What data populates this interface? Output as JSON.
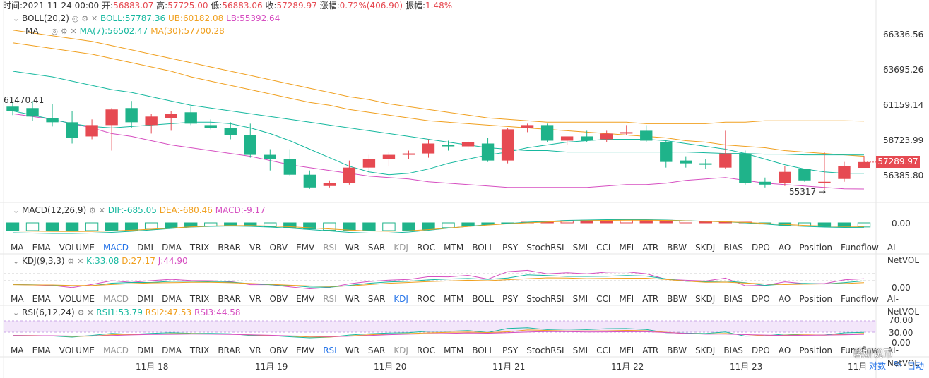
{
  "header": {
    "time_label": "时间:2021-11-24 00:00",
    "open_label": "开:",
    "open": "56883.07",
    "high_label": "高:",
    "high": "57725.00",
    "low_label": "低:",
    "low": "56883.06",
    "close_label": "收:",
    "close": "57289.97",
    "change_label": "涨幅:",
    "change": "0.72%(406.90)",
    "amplitude_label": "振幅:",
    "amplitude": "1.48%"
  },
  "boll": {
    "name": "BOLL(20,2)",
    "mid": "BOLL:57787.36",
    "ub": "UB:60182.08",
    "lb": "LB:55392.64"
  },
  "ma": {
    "name": "MA",
    "ma7": "MA(7):56502.47",
    "ma30": "MA(30):57700.28"
  },
  "price_axis": [
    "66336.56",
    "63695.26",
    "61159.14",
    "58723.99",
    "56385.80"
  ],
  "current_price": "57289.97",
  "high_marker": "61470.41",
  "low_marker": "55317",
  "macd": {
    "name": "MACD(12,26,9)",
    "dif": "DIF:-685.05",
    "dea": "DEA:-680.46",
    "macd": "MACD:-9.17",
    "axis": "0.00"
  },
  "kdj": {
    "name": "KDJ(9,3,3)",
    "k": "K:33.08",
    "d": "D:27.17",
    "j": "J:44.90",
    "axis": "0.00"
  },
  "rsi": {
    "name": "RSI(6,12,24)",
    "rsi1": "RSI1:53.79",
    "rsi2": "RSI2:47.53",
    "rsi3": "RSI3:44.58",
    "axis": [
      "70.00",
      "30.00",
      "0.00"
    ]
  },
  "indicator_tabs": [
    "MA",
    "EMA",
    "VOLUME",
    "MACD",
    "DMI",
    "DMA",
    "TRIX",
    "BRAR",
    "VR",
    "OBV",
    "EMV",
    "RSI",
    "WR",
    "SAR",
    "KDJ",
    "ROC",
    "MTM",
    "BOLL",
    "PSY",
    "StochRSI",
    "SMI",
    "CCI",
    "MFI",
    "ATR",
    "BBW",
    "SKDJ",
    "BIAS",
    "DPO",
    "AO",
    "Position",
    "Fundflow",
    "AI-NetVOL"
  ],
  "date_axis": [
    "11月 18",
    "11月 19",
    "11月 20",
    "11月 21",
    "11月 22",
    "11月 23",
    "11月"
  ],
  "footer": {
    "log_link": "对数",
    "pct_link": "%",
    "auto_link": "自动",
    "watermark": "馨妍说币"
  },
  "colors": {
    "up": "#e64a52",
    "down": "#1fb38a",
    "ma7": "#16b89f",
    "ma30": "#f0a020",
    "boll_mid": "#f0a020",
    "boll_ub": "#f0a020",
    "boll_lb": "#d64fc1",
    "accent": "#2775e8"
  },
  "chart_data": {
    "type": "candlestick",
    "y_unit": "USDT",
    "candles": [
      {
        "o": 61200,
        "h": 61470,
        "l": 60600,
        "c": 60900
      },
      {
        "o": 61100,
        "h": 61600,
        "l": 60200,
        "c": 60500
      },
      {
        "o": 60400,
        "h": 61400,
        "l": 59800,
        "c": 60100
      },
      {
        "o": 60100,
        "h": 60900,
        "l": 58600,
        "c": 59000
      },
      {
        "o": 59100,
        "h": 60300,
        "l": 58900,
        "c": 59900
      },
      {
        "o": 59900,
        "h": 61100,
        "l": 58100,
        "c": 61000
      },
      {
        "o": 61100,
        "h": 61600,
        "l": 59700,
        "c": 60100
      },
      {
        "o": 59900,
        "h": 60700,
        "l": 59300,
        "c": 60500
      },
      {
        "o": 60400,
        "h": 60900,
        "l": 59500,
        "c": 60700
      },
      {
        "o": 60800,
        "h": 61200,
        "l": 59900,
        "c": 60000
      },
      {
        "o": 59900,
        "h": 60300,
        "l": 59600,
        "c": 59700
      },
      {
        "o": 59700,
        "h": 60100,
        "l": 58900,
        "c": 59200
      },
      {
        "o": 59200,
        "h": 60000,
        "l": 57600,
        "c": 57800
      },
      {
        "o": 57800,
        "h": 58200,
        "l": 56700,
        "c": 57500
      },
      {
        "o": 57500,
        "h": 58200,
        "l": 56300,
        "c": 56400
      },
      {
        "o": 56400,
        "h": 56700,
        "l": 55400,
        "c": 55500
      },
      {
        "o": 55600,
        "h": 56000,
        "l": 55500,
        "c": 55800
      },
      {
        "o": 55800,
        "h": 57400,
        "l": 55700,
        "c": 56900
      },
      {
        "o": 56900,
        "h": 57800,
        "l": 56400,
        "c": 57500
      },
      {
        "o": 57500,
        "h": 58000,
        "l": 57000,
        "c": 57800
      },
      {
        "o": 57800,
        "h": 58100,
        "l": 57500,
        "c": 57900
      },
      {
        "o": 57900,
        "h": 58900,
        "l": 57600,
        "c": 58600
      },
      {
        "o": 58500,
        "h": 58800,
        "l": 58100,
        "c": 58400
      },
      {
        "o": 58400,
        "h": 58800,
        "l": 58200,
        "c": 58700
      },
      {
        "o": 58600,
        "h": 59000,
        "l": 57300,
        "c": 57400
      },
      {
        "o": 57400,
        "h": 59700,
        "l": 57200,
        "c": 59600
      },
      {
        "o": 59700,
        "h": 60000,
        "l": 59400,
        "c": 59900
      },
      {
        "o": 59900,
        "h": 60000,
        "l": 58700,
        "c": 58800
      },
      {
        "o": 58800,
        "h": 59100,
        "l": 58500,
        "c": 59100
      },
      {
        "o": 59100,
        "h": 59500,
        "l": 58700,
        "c": 58800
      },
      {
        "o": 58900,
        "h": 59500,
        "l": 58700,
        "c": 59300
      },
      {
        "o": 59300,
        "h": 59900,
        "l": 59200,
        "c": 59400
      },
      {
        "o": 59500,
        "h": 59900,
        "l": 58700,
        "c": 58800
      },
      {
        "o": 58700,
        "h": 58800,
        "l": 56900,
        "c": 57300
      },
      {
        "o": 57400,
        "h": 57700,
        "l": 56900,
        "c": 57200
      },
      {
        "o": 57200,
        "h": 57500,
        "l": 56800,
        "c": 57100
      },
      {
        "o": 56900,
        "h": 59500,
        "l": 56800,
        "c": 57900
      },
      {
        "o": 57900,
        "h": 58100,
        "l": 55700,
        "c": 55800
      },
      {
        "o": 55900,
        "h": 56200,
        "l": 55500,
        "c": 55700
      },
      {
        "o": 55800,
        "h": 57000,
        "l": 55600,
        "c": 56600
      },
      {
        "o": 56800,
        "h": 56800,
        "l": 55900,
        "c": 56000
      },
      {
        "o": 55800,
        "h": 58000,
        "l": 55300,
        "c": 55900
      },
      {
        "o": 56100,
        "h": 57300,
        "l": 55900,
        "c": 57000
      },
      {
        "o": 56883,
        "h": 57725,
        "l": 56883,
        "c": 57290
      }
    ],
    "series": [
      {
        "name": "MA(7)",
        "values": [
          60900,
          60600,
          60300,
          60000,
          59800,
          59700,
          59800,
          59900,
          60000,
          60100,
          60100,
          60000,
          59700,
          59300,
          58800,
          58200,
          57600,
          57000,
          56600,
          56400,
          56500,
          56800,
          57200,
          57500,
          57800,
          58000,
          58300,
          58500,
          58700,
          58800,
          58900,
          58900,
          58900,
          58800,
          58600,
          58400,
          58200,
          57900,
          57500,
          57100,
          56800,
          56600,
          56500,
          56500
        ]
      },
      {
        "name": "MA(30)",
        "values": [
          65700,
          65500,
          65300,
          65100,
          64900,
          64600,
          64300,
          64000,
          63700,
          63300,
          63000,
          62700,
          62400,
          62100,
          61800,
          61500,
          61300,
          61000,
          60800,
          60600,
          60400,
          60200,
          60100,
          60000,
          59900,
          59800,
          59700,
          59600,
          59500,
          59400,
          59300,
          59200,
          59100,
          59000,
          58800,
          58700,
          58500,
          58400,
          58300,
          58100,
          58000,
          57900,
          57800,
          57700
        ]
      },
      {
        "name": "BOLL",
        "values": [
          63700,
          63500,
          63300,
          63000,
          62700,
          62400,
          62200,
          61900,
          61600,
          61300,
          61100,
          60900,
          60700,
          60500,
          60300,
          60100,
          59900,
          59700,
          59500,
          59300,
          59100,
          58900,
          58700,
          58500,
          58300,
          58200,
          58100,
          58100,
          58000,
          58000,
          58000,
          58000,
          58000,
          58000,
          58000,
          57950,
          57900,
          57900,
          57850,
          57850,
          57800,
          57800,
          57800,
          57787
        ]
      },
      {
        "name": "UB",
        "values": [
          66600,
          66400,
          66200,
          66000,
          65800,
          65500,
          65200,
          64900,
          64600,
          64300,
          64000,
          63700,
          63400,
          63100,
          62800,
          62500,
          62200,
          61900,
          61700,
          61400,
          61200,
          61000,
          60800,
          60600,
          60400,
          60300,
          60200,
          60100,
          60100,
          60100,
          60100,
          60100,
          60000,
          60000,
          60000,
          60000,
          60100,
          60100,
          60200,
          60200,
          60200,
          60200,
          60200,
          60182
        ]
      },
      {
        "name": "LB",
        "values": [
          60700,
          60500,
          60300,
          60000,
          59700,
          59300,
          59100,
          58800,
          58500,
          58300,
          58100,
          57900,
          57700,
          57400,
          57100,
          56900,
          56700,
          56500,
          56300,
          56200,
          56100,
          55900,
          55800,
          55700,
          55600,
          55500,
          55500,
          55500,
          55500,
          55500,
          55600,
          55700,
          55700,
          55800,
          56000,
          56100,
          56200,
          56000,
          55800,
          55700,
          55600,
          55500,
          55400,
          55392
        ]
      }
    ]
  }
}
